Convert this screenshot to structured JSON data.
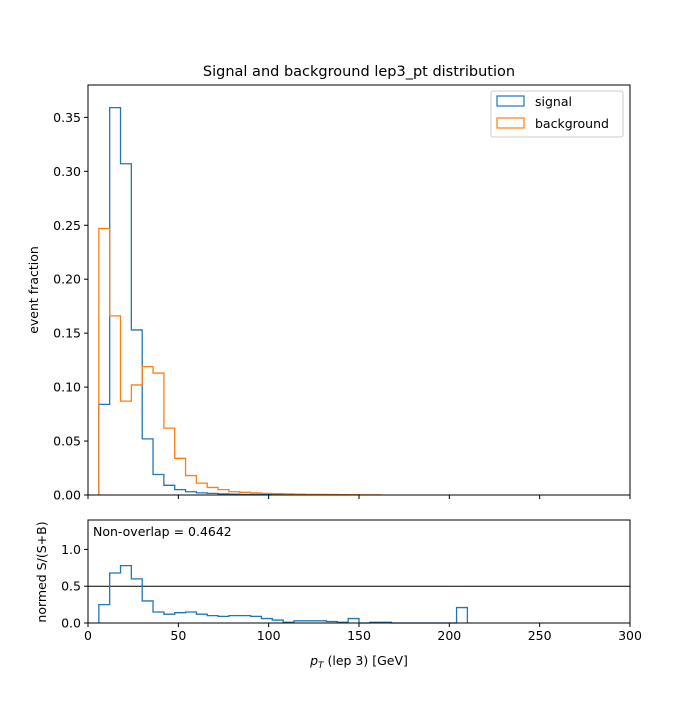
{
  "chart_data": [
    {
      "type": "histogram",
      "title": "Signal and background lep3_pt distribution",
      "xlabel": "",
      "ylabel": "event fraction",
      "xlim": [
        0,
        300
      ],
      "ylim": [
        0,
        0.38
      ],
      "xticks": [
        0,
        50,
        100,
        150,
        200,
        250,
        300
      ],
      "yticks": [
        0.0,
        0.05,
        0.1,
        0.15,
        0.2,
        0.25,
        0.3,
        0.35
      ],
      "ytick_labels": [
        "0.00",
        "0.05",
        "0.10",
        "0.15",
        "0.20",
        "0.25",
        "0.30",
        "0.35"
      ],
      "legend_position": "top-right",
      "bin_width": 6,
      "series": [
        {
          "name": "signal",
          "color": "#1f77b4",
          "bin_starts": [
            6,
            12,
            18,
            24,
            30,
            36,
            42,
            48,
            54,
            60,
            66,
            72,
            78,
            84,
            90,
            96,
            102,
            108,
            114
          ],
          "values": [
            0.084,
            0.359,
            0.307,
            0.153,
            0.052,
            0.019,
            0.009,
            0.005,
            0.003,
            0.002,
            0.0015,
            0.001,
            0.0008,
            0.0006,
            0.0005,
            0.0004,
            0.0003,
            0.0002,
            0.0001
          ]
        },
        {
          "name": "background",
          "color": "#ff7f0e",
          "bin_starts": [
            6,
            12,
            18,
            24,
            30,
            36,
            42,
            48,
            54,
            60,
            66,
            72,
            78,
            84,
            90,
            96,
            102,
            108,
            114,
            120,
            126,
            132,
            138,
            144,
            150,
            156
          ],
          "values": [
            0.247,
            0.166,
            0.087,
            0.102,
            0.119,
            0.113,
            0.062,
            0.034,
            0.018,
            0.011,
            0.007,
            0.005,
            0.003,
            0.0025,
            0.002,
            0.0015,
            0.0012,
            0.001,
            0.0008,
            0.0006,
            0.0005,
            0.0004,
            0.0003,
            0.0002,
            0.0001,
            0.0001
          ]
        }
      ]
    },
    {
      "type": "histogram",
      "title": "",
      "xlabel": "p_T (lep 3) [GeV]",
      "xlabel_main": "p",
      "xlabel_sub": "T",
      "xlabel_rest": " (lep 3) [GeV]",
      "ylabel": "normed S/(S+B)",
      "xlim": [
        0,
        300
      ],
      "ylim": [
        0,
        1.4
      ],
      "xticks": [
        0,
        50,
        100,
        150,
        200,
        250,
        300
      ],
      "yticks": [
        0.0,
        0.5,
        1.0
      ],
      "ytick_labels": [
        "0.0",
        "0.5",
        "1.0"
      ],
      "reference_line": 0.5,
      "annotation": "Non-overlap = 0.4642",
      "series": [
        {
          "name": "normed S/(S+B)",
          "color": "#1f77b4",
          "edges": [
            6,
            12,
            18,
            24,
            30,
            36,
            42,
            48,
            54,
            60,
            66,
            72,
            78,
            84,
            90,
            96,
            102,
            108,
            114,
            120,
            126,
            132,
            138,
            144,
            150,
            156,
            162,
            168,
            174,
            180,
            186,
            192,
            198,
            204,
            210
          ],
          "values": [
            0.25,
            0.68,
            0.78,
            0.6,
            0.3,
            0.15,
            0.12,
            0.14,
            0.15,
            0.12,
            0.1,
            0.09,
            0.1,
            0.1,
            0.09,
            0.06,
            0.04,
            0.01,
            0.03,
            0.03,
            0.03,
            0.02,
            0.01,
            0.06,
            0.0,
            0.01,
            0.01,
            0.0,
            0.0,
            0.0,
            0.0,
            0.0,
            0.0,
            0.21
          ]
        }
      ]
    }
  ]
}
